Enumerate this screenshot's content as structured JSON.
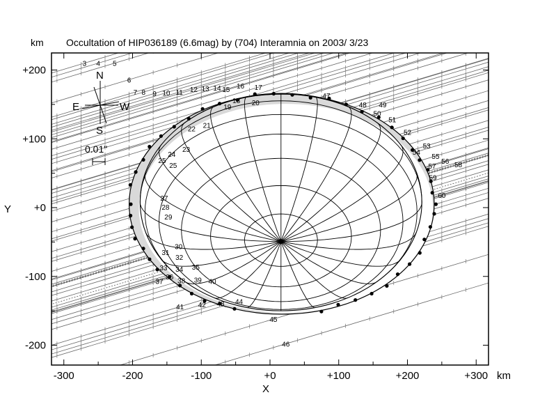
{
  "chart_data": {
    "type": "scatter",
    "title": "Occultation of HIP036189 (6.6mag) by (704) Interamnia on 2003/ 3/23",
    "xlabel": "X",
    "ylabel": "Y",
    "unit_x": "km",
    "unit_y": "km",
    "xlim": [
      -320,
      320
    ],
    "ylim": [
      -230,
      220
    ],
    "x_ticks": [
      {
        "value": -300,
        "label": "-300"
      },
      {
        "value": -200,
        "label": "-200"
      },
      {
        "value": -100,
        "label": "-100"
      },
      {
        "value": 0,
        "label": "+0"
      },
      {
        "value": 100,
        "label": "+100"
      },
      {
        "value": 200,
        "label": "+200"
      },
      {
        "value": 300,
        "label": "+300"
      }
    ],
    "y_ticks": [
      {
        "value": 200,
        "label": "+200"
      },
      {
        "value": 100,
        "label": "+100"
      },
      {
        "value": 0,
        "label": "+0"
      },
      {
        "value": -100,
        "label": "-100"
      },
      {
        "value": -200,
        "label": "-200"
      }
    ],
    "grid": false,
    "compass": {
      "north": "N",
      "south": "S",
      "east": "E",
      "west": "W"
    },
    "scale_label": "0.01\"",
    "ellipse": {
      "cx": 17,
      "cy": 5,
      "rx": 222,
      "ry": 160
    },
    "chords": [
      {
        "label": "3",
        "label_x": -270,
        "label_y": 210
      },
      {
        "label": "4",
        "label_x": -250,
        "label_y": 210
      },
      {
        "label": "5",
        "label_x": -226,
        "label_y": 210
      },
      {
        "label": "6",
        "label_x": -205,
        "label_y": 186
      },
      {
        "label": "7",
        "label_x": -196,
        "label_y": 168
      },
      {
        "label": "8",
        "label_x": -184,
        "label_y": 168
      },
      {
        "label": "9",
        "label_x": -168,
        "label_y": 166
      },
      {
        "label": "10",
        "label_x": -151,
        "label_y": 167
      },
      {
        "label": "11",
        "label_x": -132,
        "label_y": 168
      },
      {
        "label": "12",
        "label_x": -111,
        "label_y": 172
      },
      {
        "label": "13",
        "label_x": -94,
        "label_y": 173
      },
      {
        "label": "14",
        "label_x": -77,
        "label_y": 174
      },
      {
        "label": "15",
        "label_x": -64,
        "label_y": 172
      },
      {
        "label": "16",
        "label_x": -43,
        "label_y": 177
      },
      {
        "label": "17",
        "label_x": -17,
        "label_y": 175
      },
      {
        "label": "18",
        "label_x": -49,
        "label_y": 156
      },
      {
        "label": "19",
        "label_x": -62,
        "label_y": 147
      },
      {
        "label": "20",
        "label_x": -21,
        "label_y": 153
      },
      {
        "label": "21",
        "label_x": -92,
        "label_y": 120
      },
      {
        "label": "22",
        "label_x": -114,
        "label_y": 115
      },
      {
        "label": "23",
        "label_x": -122,
        "label_y": 85
      },
      {
        "label": "24",
        "label_x": -143,
        "label_y": 78
      },
      {
        "label": "25",
        "label_x": -157,
        "label_y": 69
      },
      {
        "label": "25",
        "label_x": -141,
        "label_y": 62
      },
      {
        "label": "27",
        "label_x": -154,
        "label_y": 14
      },
      {
        "label": "28",
        "label_x": -152,
        "label_y": 1
      },
      {
        "label": "29",
        "label_x": -148,
        "label_y": -13
      },
      {
        "label": "30",
        "label_x": -133,
        "label_y": -56
      },
      {
        "label": "31",
        "label_x": -152,
        "label_y": -65
      },
      {
        "label": "32",
        "label_x": -132,
        "label_y": -72
      },
      {
        "label": "33",
        "label_x": -155,
        "label_y": -87
      },
      {
        "label": "34",
        "label_x": -132,
        "label_y": -89
      },
      {
        "label": "35",
        "label_x": -108,
        "label_y": -86
      },
      {
        "label": "36",
        "label_x": -146,
        "label_y": -100
      },
      {
        "label": "37",
        "label_x": -161,
        "label_y": -107
      },
      {
        "label": "38",
        "label_x": -129,
        "label_y": -106
      },
      {
        "label": "39",
        "label_x": -105,
        "label_y": -105
      },
      {
        "label": "40",
        "label_x": -84,
        "label_y": -107
      },
      {
        "label": "41",
        "label_x": -131,
        "label_y": -144
      },
      {
        "label": "42",
        "label_x": -99,
        "label_y": -141
      },
      {
        "label": "43",
        "label_x": -72,
        "label_y": -139
      },
      {
        "label": "44",
        "label_x": -45,
        "label_y": -136
      },
      {
        "label": "45",
        "label_x": 5,
        "label_y": -162
      },
      {
        "label": "46",
        "label_x": 23,
        "label_y": -198
      },
      {
        "label": "47",
        "label_x": 82,
        "label_y": 163
      },
      {
        "label": "48",
        "label_x": 135,
        "label_y": 150
      },
      {
        "label": "49",
        "label_x": 164,
        "label_y": 150
      },
      {
        "label": "50",
        "label_x": 156,
        "label_y": 137
      },
      {
        "label": "51",
        "label_x": 178,
        "label_y": 128
      },
      {
        "label": "52",
        "label_x": 200,
        "label_y": 110
      },
      {
        "label": "53",
        "label_x": 228,
        "label_y": 90
      },
      {
        "label": "54",
        "label_x": 213,
        "label_y": 81
      },
      {
        "label": "55",
        "label_x": 241,
        "label_y": 75
      },
      {
        "label": "56",
        "label_x": 255,
        "label_y": 68
      },
      {
        "label": "57",
        "label_x": 236,
        "label_y": 61
      },
      {
        "label": "58",
        "label_x": 274,
        "label_y": 63
      },
      {
        "label": "59",
        "label_x": 237,
        "label_y": 44
      },
      {
        "label": "60",
        "label_x": 250,
        "label_y": 18
      }
    ]
  }
}
